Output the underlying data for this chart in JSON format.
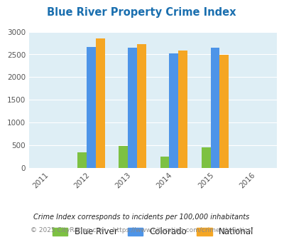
{
  "title": "Blue River Property Crime Index",
  "title_color": "#1a6faf",
  "years": [
    2011,
    2012,
    2013,
    2014,
    2015,
    2016
  ],
  "bar_years": [
    2012,
    2013,
    2014,
    2015
  ],
  "blue_river": [
    350,
    480,
    245,
    455
  ],
  "colorado": [
    2670,
    2655,
    2530,
    2640
  ],
  "national": [
    2850,
    2730,
    2590,
    2490
  ],
  "color_green": "#7dc142",
  "color_blue": "#4d94e8",
  "color_orange": "#f5a623",
  "bg_color": "#deeef5",
  "ylim": [
    0,
    3000
  ],
  "yticks": [
    0,
    500,
    1000,
    1500,
    2000,
    2500,
    3000
  ],
  "legend_labels": [
    "Blue River",
    "Colorado",
    "National"
  ],
  "footnote1": "Crime Index corresponds to incidents per 100,000 inhabitants",
  "footnote2": "© 2025 CityRating.com - https://www.cityrating.com/crime-statistics/",
  "footnote_color1": "#222222",
  "footnote_color2": "#888888",
  "grid_color": "#ffffff"
}
